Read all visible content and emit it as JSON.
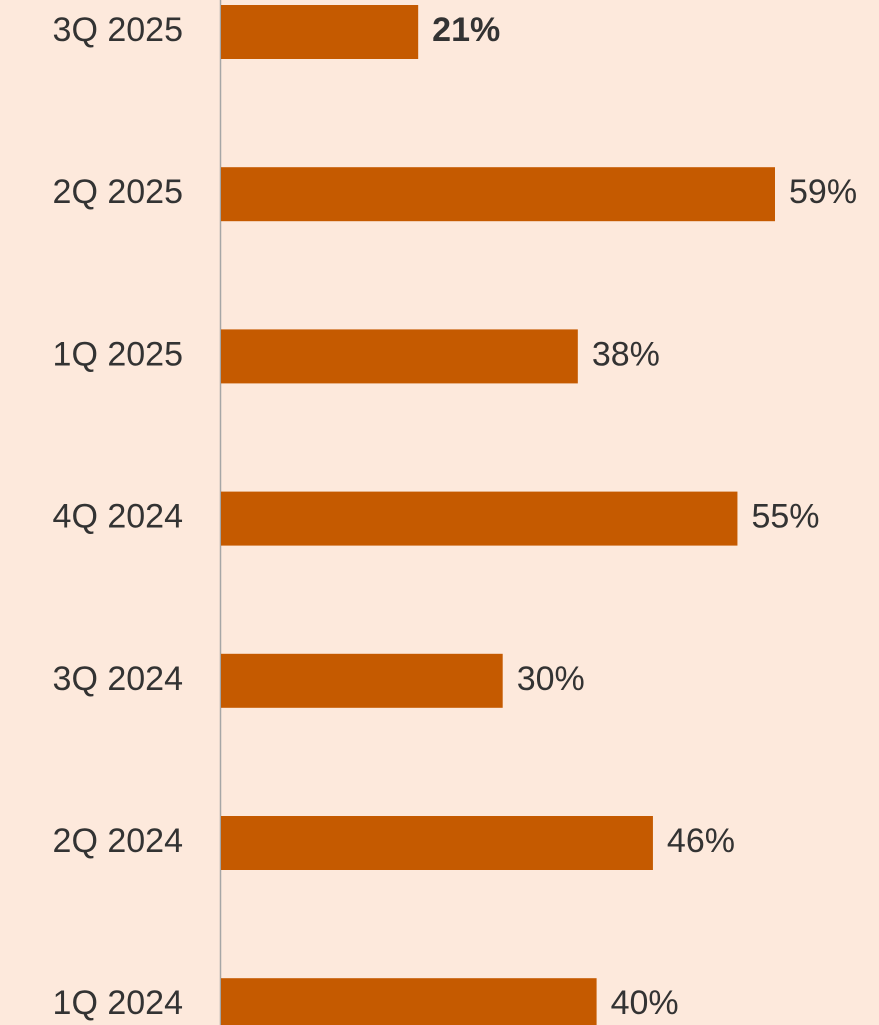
{
  "chart_data": {
    "type": "bar",
    "orientation": "horizontal",
    "categories": [
      "3Q 2025",
      "2Q 2025",
      "1Q 2025",
      "4Q 2024",
      "3Q 2024",
      "2Q 2024",
      "1Q 2024"
    ],
    "values": [
      21,
      59,
      38,
      55,
      30,
      46,
      40
    ],
    "value_labels": [
      "21%",
      "59%",
      "38%",
      "55%",
      "30%",
      "46%",
      "40%"
    ],
    "color": "#c55a00"
  }
}
